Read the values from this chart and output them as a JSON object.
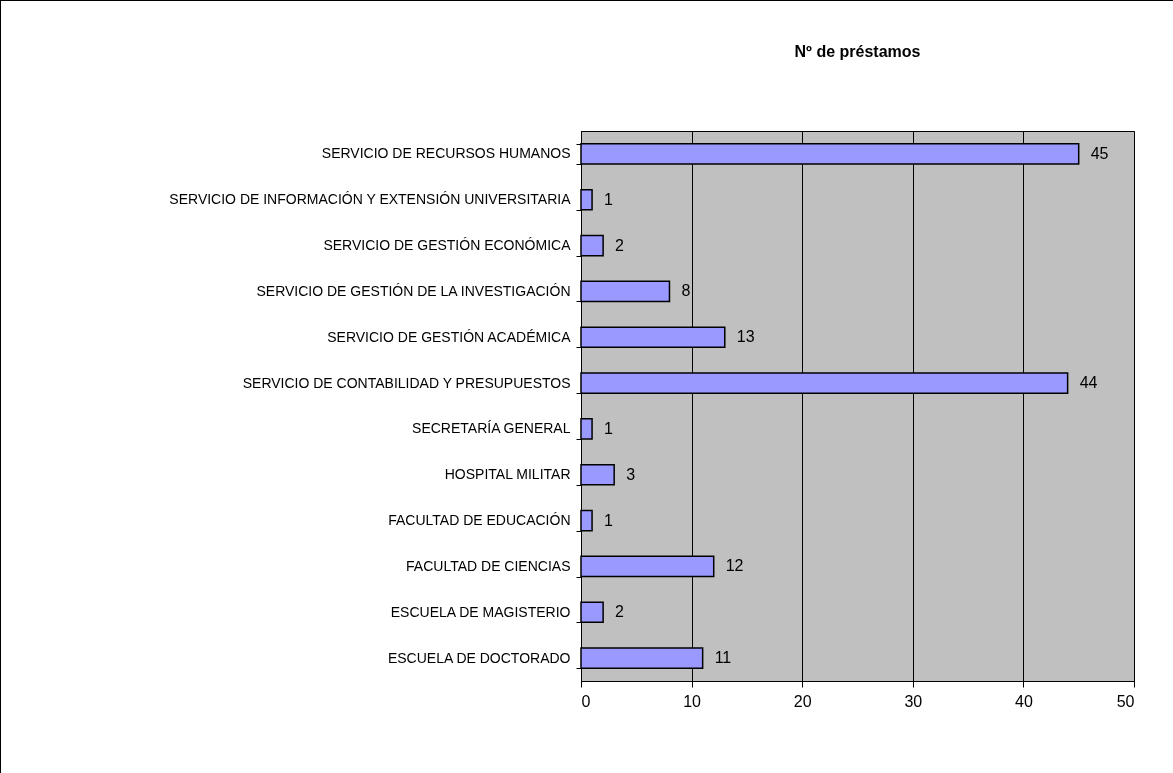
{
  "chart_data": {
    "type": "bar",
    "orientation": "horizontal",
    "title": "Nº  de préstamos",
    "categories": [
      "SERVICIO DE RECURSOS HUMANOS",
      "SERVICIO DE INFORMACIÓN Y EXTENSIÓN UNIVERSITARIA",
      "SERVICIO DE GESTIÓN ECONÓMICA",
      "SERVICIO DE GESTIÓN DE LA INVESTIGACIÓN",
      "SERVICIO DE GESTIÓN ACADÉMICA",
      "SERVICIO DE CONTABILIDAD Y PRESUPUESTOS",
      "SECRETARÍA GENERAL",
      "HOSPITAL MILITAR",
      "FACULTAD DE EDUCACIÓN",
      "FACULTAD DE CIENCIAS",
      "ESCUELA DE MAGISTERIO",
      "ESCUELA DE DOCTORADO"
    ],
    "values": [
      45,
      1,
      2,
      8,
      13,
      44,
      1,
      3,
      1,
      12,
      2,
      11
    ],
    "color": "#9999ff",
    "xlim": [
      0,
      50
    ],
    "xticks": [
      0,
      10,
      20,
      30,
      40,
      50
    ],
    "grid": "x",
    "data_labels": true
  }
}
